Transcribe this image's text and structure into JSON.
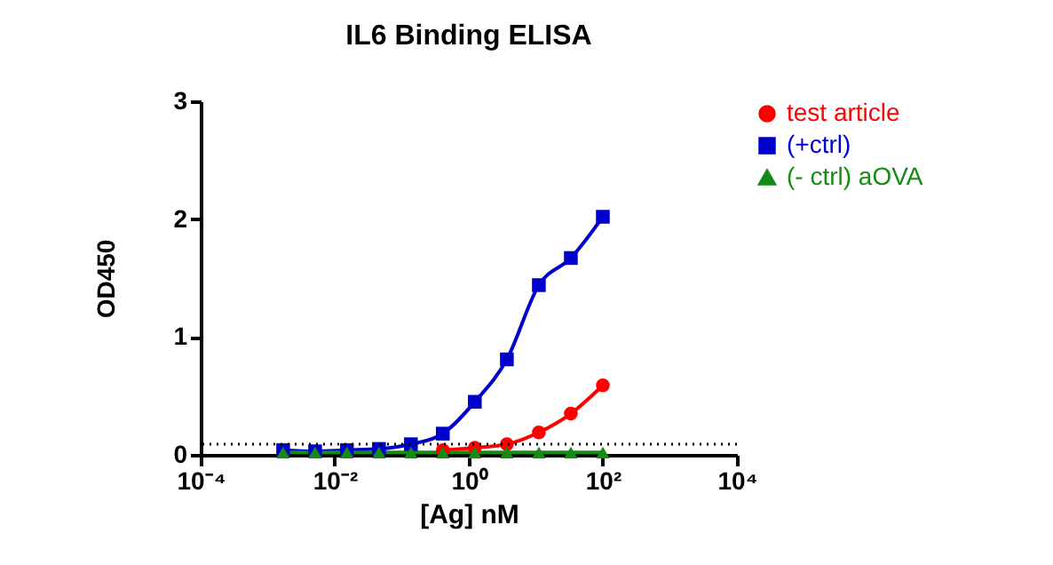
{
  "chart_data": {
    "type": "line",
    "title": "IL6 Binding ELISA",
    "xlabel": "[Ag] nM",
    "ylabel": "OD450",
    "x": [
      0.0017,
      0.0051,
      0.0152,
      0.0457,
      0.137,
      0.41,
      1.23,
      3.7,
      11.1,
      33.3,
      100
    ],
    "series": [
      {
        "name": "test article",
        "color": "#ff0000",
        "marker": "circle",
        "values": [
          null,
          null,
          null,
          null,
          null,
          0.04,
          0.06,
          0.09,
          0.19,
          0.35,
          0.59
        ]
      },
      {
        "name": "(+ctrl)",
        "color": "#0000cc",
        "marker": "square",
        "values": [
          0.04,
          0.03,
          0.04,
          0.05,
          0.09,
          0.18,
          0.45,
          0.81,
          1.44,
          1.67,
          2.02
        ]
      },
      {
        "name": "(- ctrl) aOVA",
        "color": "#158a15",
        "marker": "triangle",
        "values": [
          0.02,
          0.02,
          0.02,
          0.02,
          0.02,
          0.02,
          0.02,
          0.02,
          0.02,
          0.02,
          0.02
        ]
      }
    ],
    "log": "x",
    "xlim": [
      0.0001,
      10000
    ],
    "xticks": [
      {
        "value": 0.0001,
        "label": "10⁻⁴"
      },
      {
        "value": 0.01,
        "label": "10⁻²"
      },
      {
        "value": 1,
        "label": "10⁰"
      },
      {
        "value": 100,
        "label": "10²"
      },
      {
        "value": 10000,
        "label": "10⁴"
      }
    ],
    "ylim": [
      0,
      3
    ],
    "yticks": [
      0,
      1,
      2,
      3
    ],
    "ref_lines": [
      {
        "axis": "y",
        "value": 0.09,
        "color": "#000000",
        "line_style": "dotted"
      }
    ],
    "grid": false,
    "legend": "top right",
    "line_style": "solid"
  }
}
